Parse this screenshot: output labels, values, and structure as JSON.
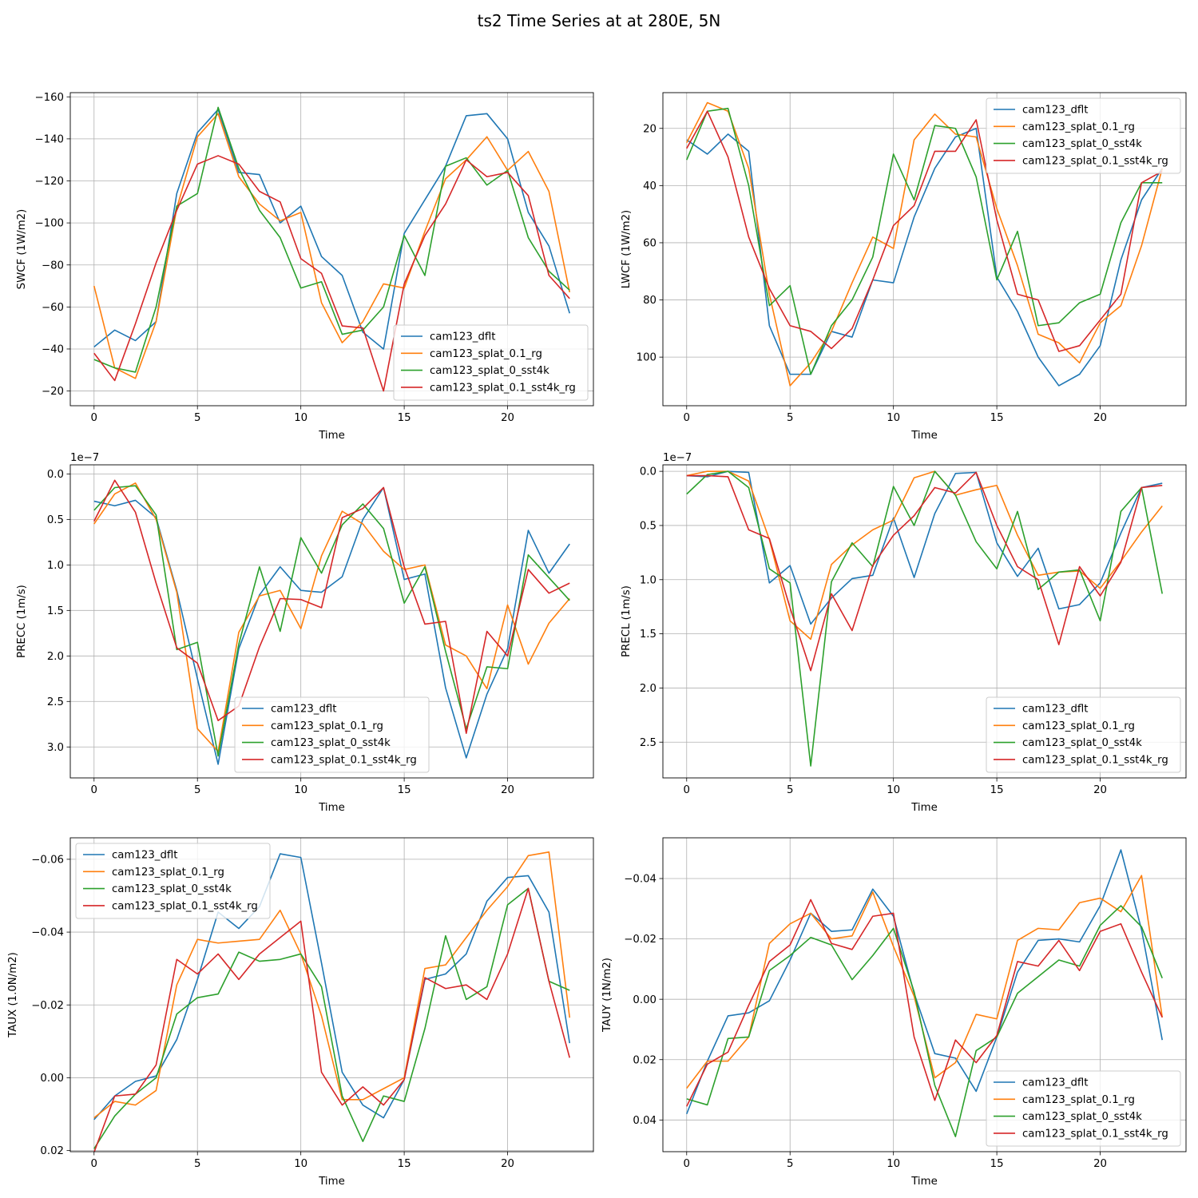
{
  "figure_title": "ts2 Time Series at at 280E, 5N",
  "colors": {
    "cam123_dflt": "#1f77b4",
    "cam123_splat_0.1_rg": "#ff7f0e",
    "cam123_splat_0_sst4k": "#2ca02c",
    "cam123_splat_0.1_sst4k_rg": "#d62728",
    "grid": "#b0b0b0"
  },
  "chart_data": [
    {
      "type": "line",
      "ylabel": "SWCF (1W/m2)",
      "xlabel": "Time",
      "xlim": [
        -1.15,
        24.15
      ],
      "ylim": [
        -13,
        -162
      ],
      "xticks": [
        0,
        5,
        10,
        15,
        20
      ],
      "yticks": [
        -160,
        -140,
        -120,
        -100,
        -80,
        -60,
        -40,
        -20
      ],
      "yticklabels": [
        "−160",
        "−140",
        "−120",
        "−100",
        "−80",
        "−60",
        "−40",
        "−20"
      ],
      "exponent": "",
      "legend_loc": "lower-right",
      "x": [
        0,
        1,
        2,
        3,
        4,
        5,
        6,
        7,
        8,
        9,
        10,
        11,
        12,
        13,
        14,
        15,
        16,
        17,
        18,
        19,
        20,
        21,
        22,
        23
      ],
      "series": [
        {
          "name": "cam123_dflt",
          "values": [
            -41,
            -49,
            -44,
            -53,
            -114,
            -143,
            -154,
            -124,
            -123,
            -100,
            -108,
            -84,
            -75,
            -48,
            -40,
            -95,
            -111,
            -127,
            -151,
            -152,
            -140,
            -105,
            -89,
            -57
          ]
        },
        {
          "name": "cam123_splat_0.1_rg",
          "values": [
            -70,
            -31,
            -26,
            -53,
            -107,
            -141,
            -152,
            -122,
            -109,
            -101,
            -105,
            -62,
            -43,
            -53,
            -71,
            -69,
            -96,
            -121,
            -130,
            -141,
            -125,
            -134,
            -115,
            -67
          ]
        },
        {
          "name": "cam123_splat_0_sst4k",
          "values": [
            -35,
            -31,
            -29,
            -60,
            -108,
            -114,
            -155,
            -126,
            -106,
            -93,
            -69,
            -72,
            -47,
            -49,
            -60,
            -94,
            -75,
            -127,
            -131,
            -118,
            -125,
            -93,
            -77,
            -68
          ]
        },
        {
          "name": "cam123_splat_0.1_sst4k_rg",
          "values": [
            -38,
            -25,
            -52,
            -81,
            -106,
            -128,
            -132,
            -128,
            -115,
            -110,
            -83,
            -76,
            -51,
            -50,
            -20,
            -71,
            -94,
            -109,
            -130,
            -122,
            -124,
            -113,
            -75,
            -64
          ]
        }
      ]
    },
    {
      "type": "line",
      "ylabel": "LWCF (1W/m2)",
      "xlabel": "Time",
      "xlim": [
        -1.15,
        24.15
      ],
      "ylim": [
        117,
        7.5
      ],
      "xticks": [
        0,
        5,
        10,
        15,
        20
      ],
      "yticks": [
        20,
        40,
        60,
        80,
        100
      ],
      "yticklabels": [
        "20",
        "40",
        "60",
        "80",
        "100"
      ],
      "exponent": "",
      "legend_loc": "upper-right",
      "x": [
        0,
        1,
        2,
        3,
        4,
        5,
        6,
        7,
        8,
        9,
        10,
        11,
        12,
        13,
        14,
        15,
        16,
        17,
        18,
        19,
        20,
        21,
        22,
        23
      ],
      "series": [
        {
          "name": "cam123_dflt",
          "values": [
            24,
            29,
            22,
            28,
            89,
            106,
            106,
            91,
            93,
            73,
            74,
            51,
            34,
            23,
            20,
            72,
            84,
            100,
            110,
            106,
            96,
            66,
            45,
            34
          ]
        },
        {
          "name": "cam123_splat_0.1_rg",
          "values": [
            25,
            11,
            14,
            34,
            78,
            110,
            102,
            91,
            74,
            58,
            62,
            24,
            15,
            22,
            23,
            48,
            68,
            92,
            95,
            102,
            88,
            82,
            61,
            34
          ]
        },
        {
          "name": "cam123_splat_0_sst4k",
          "values": [
            31,
            14,
            13,
            40,
            82,
            75,
            106,
            89,
            80,
            65,
            29,
            45,
            19,
            20,
            37,
            73,
            56,
            89,
            88,
            81,
            78,
            53,
            39,
            39
          ]
        },
        {
          "name": "cam123_splat_0.1_sst4k_rg",
          "values": [
            27,
            14,
            30,
            58,
            76,
            89,
            91,
            97,
            90,
            73,
            54,
            47,
            28,
            28,
            17,
            52,
            78,
            80,
            98,
            96,
            87,
            78,
            39,
            35
          ]
        }
      ]
    },
    {
      "type": "line",
      "ylabel": "PRECC (1m/s)",
      "xlabel": "Time",
      "xlim": [
        -1.15,
        24.15
      ],
      "ylim": [
        3.34,
        -0.1
      ],
      "xticks": [
        0,
        5,
        10,
        15,
        20
      ],
      "yticks": [
        0.0,
        0.5,
        1.0,
        1.5,
        2.0,
        2.5,
        3.0
      ],
      "yticklabels": [
        "0.0",
        "0.5",
        "1.0",
        "1.5",
        "2.0",
        "2.5",
        "3.0"
      ],
      "exponent": "1e−7",
      "legend_loc": "lower-center",
      "x": [
        0,
        1,
        2,
        3,
        4,
        5,
        6,
        7,
        8,
        9,
        10,
        11,
        12,
        13,
        14,
        15,
        16,
        17,
        18,
        19,
        20,
        21,
        22,
        23
      ],
      "series": [
        {
          "name": "cam123_dflt",
          "values": [
            0.3,
            0.35,
            0.29,
            0.48,
            1.28,
            2.25,
            3.19,
            1.92,
            1.33,
            1.02,
            1.28,
            1.3,
            1.13,
            0.5,
            0.15,
            1.16,
            1.1,
            2.35,
            3.12,
            2.42,
            1.92,
            0.62,
            1.09,
            0.77
          ]
        },
        {
          "name": "cam123_splat_0.1_rg",
          "values": [
            0.55,
            0.22,
            0.1,
            0.5,
            1.3,
            2.8,
            3.05,
            1.74,
            1.34,
            1.28,
            1.7,
            0.9,
            0.41,
            0.55,
            0.85,
            1.05,
            1.0,
            1.88,
            2.0,
            2.36,
            1.44,
            2.09,
            1.64,
            1.37
          ]
        },
        {
          "name": "cam123_splat_0_sst4k",
          "values": [
            0.4,
            0.15,
            0.13,
            0.45,
            1.93,
            1.85,
            3.1,
            1.87,
            1.02,
            1.73,
            0.7,
            1.09,
            0.56,
            0.33,
            0.6,
            1.42,
            1.02,
            1.95,
            2.8,
            2.12,
            2.14,
            0.89,
            1.14,
            1.39
          ]
        },
        {
          "name": "cam123_splat_0.1_sst4k_rg",
          "values": [
            0.52,
            0.07,
            0.42,
            1.2,
            1.91,
            2.08,
            2.71,
            2.55,
            1.9,
            1.37,
            1.38,
            1.47,
            0.48,
            0.38,
            0.15,
            1.02,
            1.65,
            1.62,
            2.85,
            1.73,
            2.0,
            1.05,
            1.31,
            1.2
          ]
        }
      ]
    },
    {
      "type": "line",
      "ylabel": "PRECL (1m/s)",
      "xlabel": "Time",
      "xlim": [
        -1.15,
        24.15
      ],
      "ylim": [
        2.83,
        -0.06
      ],
      "xticks": [
        0,
        5,
        10,
        15,
        20
      ],
      "yticks": [
        0.0,
        0.5,
        1.0,
        1.5,
        2.0,
        2.5
      ],
      "yticklabels": [
        "0.0",
        "0.5",
        "1.0",
        "1.5",
        "2.0",
        "2.5"
      ],
      "exponent": "1e−7",
      "legend_loc": "lower-right",
      "x": [
        0,
        1,
        2,
        3,
        4,
        5,
        6,
        7,
        8,
        9,
        10,
        11,
        12,
        13,
        14,
        15,
        16,
        17,
        18,
        19,
        20,
        21,
        22,
        23
      ],
      "series": [
        {
          "name": "cam123_dflt",
          "values": [
            0.04,
            0.05,
            0.0,
            0.01,
            1.03,
            0.87,
            1.41,
            1.17,
            0.99,
            0.96,
            0.43,
            0.98,
            0.39,
            0.02,
            0.01,
            0.66,
            0.97,
            0.71,
            1.27,
            1.23,
            1.03,
            0.57,
            0.15,
            0.11
          ]
        },
        {
          "name": "cam123_splat_0.1_rg",
          "values": [
            0.04,
            0.0,
            0.0,
            0.09,
            0.63,
            1.38,
            1.55,
            0.86,
            0.68,
            0.54,
            0.45,
            0.06,
            0.0,
            0.22,
            0.17,
            0.13,
            0.59,
            0.96,
            0.93,
            0.92,
            1.08,
            0.83,
            0.56,
            0.32
          ]
        },
        {
          "name": "cam123_splat_0_sst4k",
          "values": [
            0.21,
            0.03,
            0.0,
            0.15,
            0.9,
            1.03,
            2.72,
            1.02,
            0.66,
            0.88,
            0.14,
            0.5,
            0.0,
            0.22,
            0.65,
            0.9,
            0.37,
            1.09,
            0.93,
            0.91,
            1.38,
            0.37,
            0.15,
            1.13
          ]
        },
        {
          "name": "cam123_splat_0.1_sst4k_rg",
          "values": [
            0.04,
            0.04,
            0.05,
            0.54,
            0.62,
            1.26,
            1.84,
            1.13,
            1.47,
            0.87,
            0.59,
            0.41,
            0.15,
            0.2,
            0.01,
            0.5,
            0.88,
            1.0,
            1.6,
            0.88,
            1.15,
            0.84,
            0.15,
            0.13
          ]
        }
      ]
    },
    {
      "type": "line",
      "ylabel": "TAUX (1.0N/m2)",
      "xlabel": "Time",
      "xlim": [
        -1.15,
        24.15
      ],
      "ylim": [
        0.0203,
        -0.0659
      ],
      "xticks": [
        0,
        5,
        10,
        15,
        20
      ],
      "yticks": [
        -0.06,
        -0.04,
        -0.02,
        0.0,
        0.02
      ],
      "yticklabels": [
        "−0.06",
        "−0.04",
        "−0.02",
        "0.00",
        "0.02"
      ],
      "exponent": "",
      "legend_loc": "upper-left",
      "x": [
        0,
        1,
        2,
        3,
        4,
        5,
        6,
        7,
        8,
        9,
        10,
        11,
        12,
        13,
        14,
        15,
        16,
        17,
        18,
        19,
        20,
        21,
        22,
        23
      ],
      "series": [
        {
          "name": "cam123_dflt",
          "values": [
            0.0115,
            0.005,
            0.001,
            -0.0005,
            -0.0105,
            -0.027,
            -0.0455,
            -0.041,
            -0.047,
            -0.0615,
            -0.0605,
            -0.0315,
            -0.0015,
            0.0075,
            0.011,
            0.0005,
            -0.027,
            -0.0285,
            -0.034,
            -0.0485,
            -0.055,
            -0.0555,
            -0.0455,
            -0.0095
          ]
        },
        {
          "name": "cam123_splat_0.1_rg",
          "values": [
            0.011,
            0.0065,
            0.0075,
            0.0035,
            -0.0255,
            -0.038,
            -0.037,
            -0.0375,
            -0.038,
            -0.046,
            -0.034,
            -0.017,
            0.006,
            0.006,
            0.003,
            0.0,
            -0.03,
            -0.031,
            -0.0385,
            -0.046,
            -0.0525,
            -0.061,
            -0.062,
            -0.0165
          ]
        },
        {
          "name": "cam123_splat_0_sst4k",
          "values": [
            0.0195,
            0.0105,
            0.0045,
            0.0,
            -0.0175,
            -0.022,
            -0.023,
            -0.0345,
            -0.032,
            -0.0325,
            -0.034,
            -0.025,
            0.005,
            0.0175,
            0.005,
            0.0065,
            -0.0135,
            -0.039,
            -0.0215,
            -0.025,
            -0.0475,
            -0.052,
            -0.0265,
            -0.024
          ]
        },
        {
          "name": "cam123_splat_0.1_sst4k_rg",
          "values": [
            0.0205,
            0.005,
            0.0045,
            -0.0035,
            -0.0325,
            -0.0285,
            -0.034,
            -0.027,
            -0.034,
            -0.0385,
            -0.043,
            -0.0015,
            0.0075,
            0.0025,
            0.0075,
            0.0005,
            -0.0275,
            -0.0245,
            -0.0255,
            -0.0215,
            -0.034,
            -0.052,
            -0.0265,
            -0.0055
          ]
        }
      ]
    },
    {
      "type": "line",
      "ylabel": "TAUY (1N/m2)",
      "xlabel": "Time",
      "xlim": [
        -1.15,
        24.15
      ],
      "ylim": [
        0.0505,
        -0.0535
      ],
      "xticks": [
        0,
        5,
        10,
        15,
        20
      ],
      "yticks": [
        -0.04,
        -0.02,
        0.0,
        0.02,
        0.04
      ],
      "yticklabels": [
        "−0.04",
        "−0.02",
        "0.00",
        "0.02",
        "0.04"
      ],
      "exponent": "",
      "legend_loc": "lower-right",
      "x": [
        0,
        1,
        2,
        3,
        4,
        5,
        6,
        7,
        8,
        9,
        10,
        11,
        12,
        13,
        14,
        15,
        16,
        17,
        18,
        19,
        20,
        21,
        22,
        23
      ],
      "series": [
        {
          "name": "cam123_dflt",
          "values": [
            0.038,
            0.0205,
            0.0055,
            0.0045,
            0.0005,
            -0.013,
            -0.0285,
            -0.0225,
            -0.023,
            -0.0365,
            -0.0275,
            -0.002,
            0.018,
            0.0195,
            0.0305,
            0.0125,
            -0.009,
            -0.0195,
            -0.02,
            -0.019,
            -0.031,
            -0.0495,
            -0.023,
            0.0135
          ]
        },
        {
          "name": "cam123_splat_0.1_rg",
          "values": [
            0.0295,
            0.0205,
            0.0205,
            0.0125,
            -0.0185,
            -0.025,
            -0.0285,
            -0.02,
            -0.021,
            -0.0355,
            -0.0175,
            -0.001,
            0.026,
            0.021,
            0.005,
            0.0065,
            -0.0195,
            -0.0235,
            -0.023,
            -0.032,
            -0.0335,
            -0.029,
            -0.041,
            0.006
          ]
        },
        {
          "name": "cam123_splat_0_sst4k",
          "values": [
            0.033,
            0.035,
            0.013,
            0.0125,
            -0.0095,
            -0.0145,
            -0.0205,
            -0.018,
            -0.0065,
            -0.0145,
            -0.0235,
            -0.0025,
            0.0285,
            0.0455,
            0.017,
            0.0125,
            -0.002,
            -0.0075,
            -0.013,
            -0.011,
            -0.0245,
            -0.031,
            -0.024,
            -0.007
          ]
        },
        {
          "name": "cam123_splat_0.1_sst4k_rg",
          "values": [
            0.0355,
            0.0215,
            0.0175,
            0.002,
            -0.0125,
            -0.018,
            -0.033,
            -0.0185,
            -0.0165,
            -0.0275,
            -0.0285,
            0.0125,
            0.0335,
            0.0135,
            0.021,
            0.012,
            -0.0125,
            -0.011,
            -0.0195,
            -0.0095,
            -0.0225,
            -0.025,
            -0.009,
            0.006
          ]
        }
      ]
    }
  ]
}
